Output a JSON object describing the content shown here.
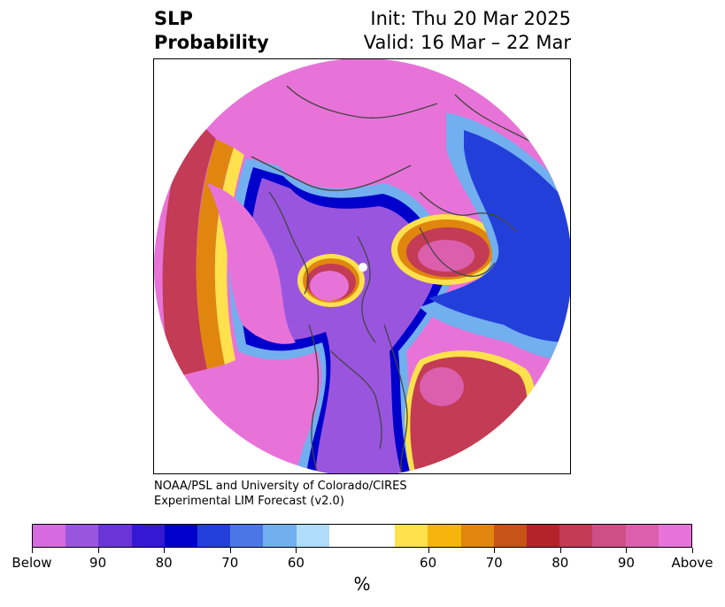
{
  "title": {
    "left_line1": "SLP",
    "left_line2": "Probability",
    "right_line1": "Init: Thu 20 Mar 2025",
    "right_line2": "Valid: 16 Mar – 22 Mar"
  },
  "credit": {
    "line1": "NOAA/PSL and University of Colorado/CIRES",
    "line2": "Experimental LIM Forecast (v2.0)"
  },
  "colorbar": {
    "colors": [
      "#d66be0",
      "#9a55df",
      "#6a35d6",
      "#3518d2",
      "#0000cc",
      "#233fd9",
      "#4b76e6",
      "#72afee",
      "#aedcfa",
      "#ffffff",
      "#ffffff",
      "#fee14c",
      "#f5b50c",
      "#e0860f",
      "#c75317",
      "#b42329",
      "#c33b55",
      "#cc4f86",
      "#dc5fad",
      "#e873d8"
    ],
    "labels": [
      "Below",
      "90",
      "80",
      "70",
      "60",
      "60",
      "70",
      "80",
      "90",
      "Above"
    ],
    "unit": "%"
  },
  "map": {
    "projection": "north polar stereographic",
    "colors": {
      "above": "#e873d8",
      "above_mid": "#c33b55",
      "above_low": "#f5b50c",
      "below_mid": "#9a55df",
      "below_high": "#0000cc",
      "below_low": "#72afee",
      "coast": "#444444"
    }
  }
}
